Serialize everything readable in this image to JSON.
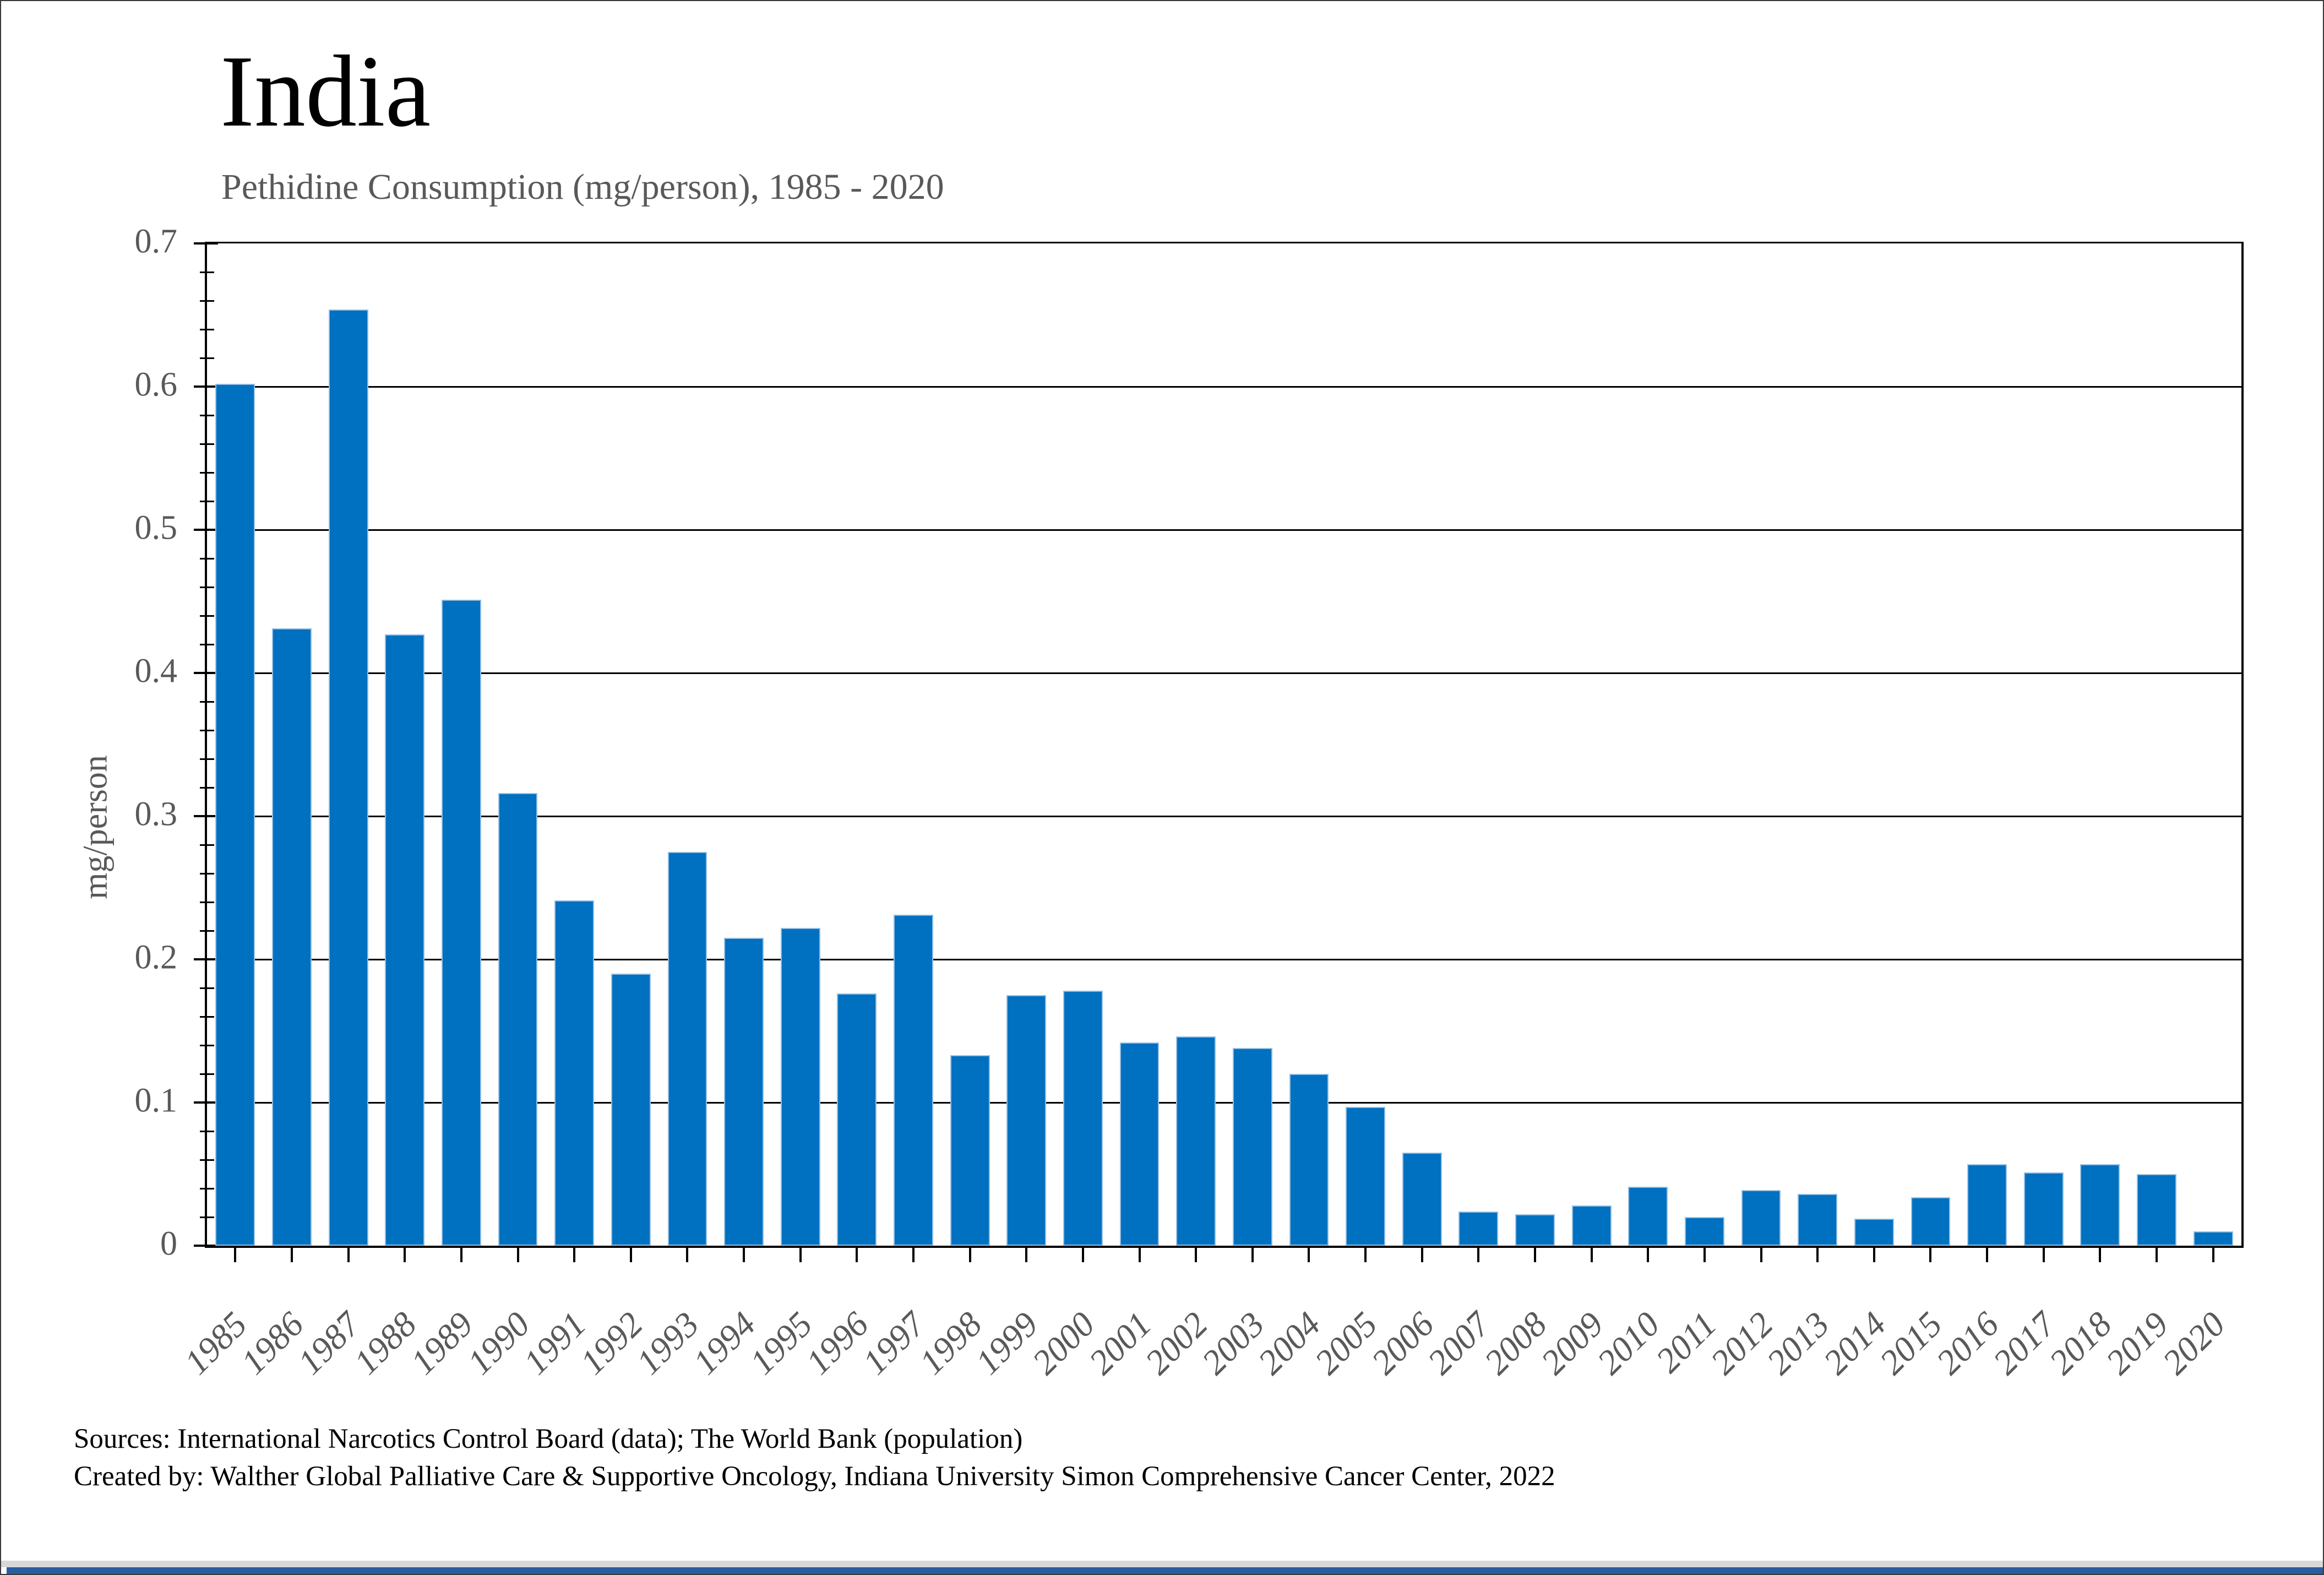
{
  "header": {
    "title": "India",
    "subtitle": "Pethidine Consumption (mg/person), 1985 - 2020"
  },
  "axes": {
    "y_label": "mg/person",
    "y_tick_labels": [
      "0.7",
      "0.6",
      "0.5",
      "0.4",
      "0.3",
      "0.2",
      "0.1",
      "0"
    ],
    "y_max": 0.7,
    "y_major_step": 0.1,
    "y_minor_step": 0.02
  },
  "chart_data": {
    "type": "bar",
    "title": "India",
    "subtitle": "Pethidine Consumption (mg/person), 1985 - 2020",
    "xlabel": "",
    "ylabel": "mg/person",
    "ylim": [
      0,
      0.7
    ],
    "grid": "horizontal major gridlines every 0.1, minor y ticks every 0.02",
    "legend_position": "none",
    "bar_color": "#0070C0",
    "categories": [
      1985,
      1986,
      1987,
      1988,
      1989,
      1990,
      1991,
      1992,
      1993,
      1994,
      1995,
      1996,
      1997,
      1998,
      1999,
      2000,
      2001,
      2002,
      2003,
      2004,
      2005,
      2006,
      2007,
      2008,
      2009,
      2010,
      2011,
      2012,
      2013,
      2014,
      2015,
      2016,
      2017,
      2018,
      2019,
      2020
    ],
    "values": [
      0.602,
      0.431,
      0.654,
      0.427,
      0.451,
      0.316,
      0.241,
      0.19,
      0.275,
      0.215,
      0.222,
      0.176,
      0.231,
      0.133,
      0.175,
      0.178,
      0.142,
      0.146,
      0.138,
      0.12,
      0.097,
      0.065,
      0.024,
      0.022,
      0.028,
      0.041,
      0.02,
      0.039,
      0.036,
      0.019,
      0.034,
      0.057,
      0.051,
      0.057,
      0.05,
      0.01
    ]
  },
  "footer": {
    "source_line1": "Sources: International Narcotics Control Board (data); The World Bank (population)",
    "source_line2": "Created by: Walther Global Palliative Care & Supportive Oncology, Indiana University Simon Comprehensive Cancer Center, 2022"
  },
  "colors": {
    "bar_fill": "#0070C0",
    "bar_edge": "#94bfe4",
    "axis_text": "#595959",
    "gridline": "#000000",
    "bottom_strip_blue": "#2a5d9f",
    "bottom_strip_shadow": "#d8d8d8"
  }
}
